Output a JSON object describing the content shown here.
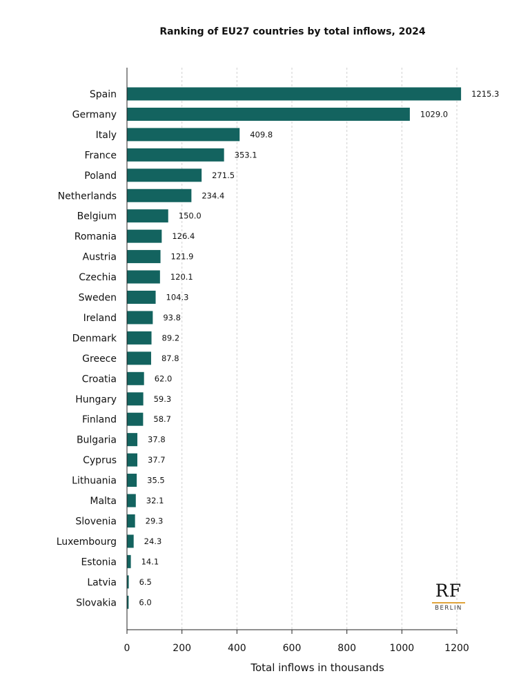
{
  "chart_data": {
    "type": "bar",
    "orientation": "horizontal",
    "title": "Ranking of EU27 countries by total inflows, 2024",
    "xlabel": "Total inflows in thousands",
    "ylabel": "",
    "xlim": [
      0,
      1200
    ],
    "xticks": [
      0,
      200,
      400,
      600,
      800,
      1000,
      1200
    ],
    "grid": "vertical dashed",
    "bar_color": "#13635f",
    "categories": [
      "Spain",
      "Germany",
      "Italy",
      "France",
      "Poland",
      "Netherlands",
      "Belgium",
      "Romania",
      "Austria",
      "Czechia",
      "Sweden",
      "Ireland",
      "Denmark",
      "Greece",
      "Croatia",
      "Hungary",
      "Finland",
      "Bulgaria",
      "Cyprus",
      "Lithuania",
      "Malta",
      "Slovenia",
      "Luxembourg",
      "Estonia",
      "Latvia",
      "Slovakia"
    ],
    "values": [
      1215.3,
      1029.0,
      409.8,
      353.1,
      271.5,
      234.4,
      150.0,
      126.4,
      121.9,
      120.1,
      104.3,
      93.8,
      89.2,
      87.8,
      62.0,
      59.3,
      58.7,
      37.8,
      37.7,
      35.5,
      32.1,
      29.3,
      24.3,
      14.1,
      6.5,
      6.0
    ],
    "value_labels": [
      "1215.3",
      "1029.0",
      "409.8",
      "353.1",
      "271.5",
      "234.4",
      "150.0",
      "126.4",
      "121.9",
      "120.1",
      "104.3",
      "93.8",
      "89.2",
      "87.8",
      "62.0",
      "59.3",
      "58.7",
      "37.8",
      "37.7",
      "35.5",
      "32.1",
      "29.3",
      "24.3",
      "14.1",
      "6.5",
      "6.0"
    ]
  },
  "logo": {
    "main": "RF",
    "sub": "BERLIN",
    "accent_color": "#e0a43a"
  }
}
